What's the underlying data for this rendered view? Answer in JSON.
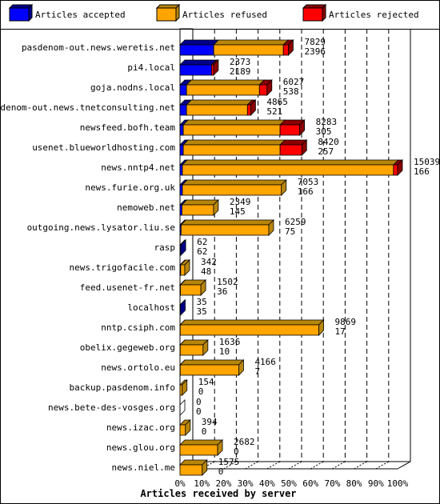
{
  "chart_data": {
    "type": "bar",
    "orientation": "horizontal",
    "stacked": true,
    "style": "3d",
    "xlabel": "Articles received by server",
    "ylabel": "",
    "xlim": [
      0,
      100
    ],
    "x_unit": "%",
    "grid": true,
    "legend_position": "top",
    "x_ticks": [
      "0%",
      "10%",
      "20%",
      "30%",
      "40%",
      "50%",
      "60%",
      "70%",
      "80%",
      "90%",
      "100%"
    ],
    "legend": [
      {
        "label": "Articles accepted",
        "color": "#0000ff"
      },
      {
        "label": "Articles refused",
        "color": "#ffa500"
      },
      {
        "label": "Articles rejected",
        "color": "#ff0000"
      }
    ],
    "series": [
      {
        "name": "Articles accepted",
        "color": "#0000ff",
        "top_color": "#00008b",
        "side_color": "#00008b"
      },
      {
        "name": "Articles refused",
        "color": "#ffa500",
        "top_color": "#b8860b",
        "side_color": "#b8860b"
      },
      {
        "name": "Articles rejected",
        "color": "#ff0000",
        "top_color": "#8b0000",
        "side_color": "#8b0000"
      }
    ],
    "rows": [
      {
        "server": "pasdenom-out.news.weretis.net",
        "label_top": "7829",
        "label_bottom": "2396",
        "accepted": 15.5,
        "refused": 32.0,
        "rejected": 2.3
      },
      {
        "server": "pi4.local",
        "label_top": "2373",
        "label_bottom": "2189",
        "accepted": 14.5,
        "refused": 0,
        "rejected": 0.9
      },
      {
        "server": "goja.nodns.local",
        "label_top": "6027",
        "label_bottom": "538",
        "accepted": 3.0,
        "refused": 33.5,
        "rejected": 3.5
      },
      {
        "server": "pasdenom-out.news.tnetconsulting.net",
        "label_top": "4865",
        "label_bottom": "521",
        "accepted": 3.0,
        "refused": 28.0,
        "rejected": 1.5
      },
      {
        "server": "newsfeed.bofh.team",
        "label_top": "8283",
        "label_bottom": "305",
        "accepted": 1.5,
        "refused": 44.5,
        "rejected": 9.0
      },
      {
        "server": "usenet.blueworldhosting.com",
        "label_top": "8420",
        "label_bottom": "257",
        "accepted": 1.5,
        "refused": 44.5,
        "rejected": 10.0
      },
      {
        "server": "news.nntp4.net",
        "label_top": "15039",
        "label_bottom": "166",
        "accepted": 1.1,
        "refused": 97.0,
        "rejected": 1.9
      },
      {
        "server": "news.furie.org.uk",
        "label_top": "7053",
        "label_bottom": "166",
        "accepted": 1.1,
        "refused": 45.5,
        "rejected": 0
      },
      {
        "server": "nemoweb.net",
        "label_top": "2349",
        "label_bottom": "145",
        "accepted": 0.9,
        "refused": 14.5,
        "rejected": 0
      },
      {
        "server": "outgoing.news.lysator.liu.se",
        "label_top": "6259",
        "label_bottom": "75",
        "accepted": 0.5,
        "refused": 40.3,
        "rejected": 0
      },
      {
        "server": "rasp",
        "label_top": "62",
        "label_bottom": "62",
        "accepted": 0.4,
        "refused": 0,
        "rejected": 0
      },
      {
        "server": "news.trigofacile.com",
        "label_top": "342",
        "label_bottom": "48",
        "accepted": 0.3,
        "refused": 1.9,
        "rejected": 0
      },
      {
        "server": "feed.usenet-fr.net",
        "label_top": "1502",
        "label_bottom": "36",
        "accepted": 0.2,
        "refused": 9.4,
        "rejected": 0
      },
      {
        "server": "localhost",
        "label_top": "35",
        "label_bottom": "35",
        "accepted": 0.2,
        "refused": 0,
        "rejected": 0
      },
      {
        "server": "nntp.csiph.com",
        "label_top": "9869",
        "label_bottom": "17",
        "accepted": 0.1,
        "refused": 63.7,
        "rejected": 0
      },
      {
        "server": "obelix.gegeweb.org",
        "label_top": "1636",
        "label_bottom": "10",
        "accepted": 0.1,
        "refused": 10.5,
        "rejected": 0
      },
      {
        "server": "news.ortolo.eu",
        "label_top": "4166",
        "label_bottom": "7",
        "accepted": 0.1,
        "refused": 26.9,
        "rejected": 0
      },
      {
        "server": "backup.pasdenom.info",
        "label_top": "154",
        "label_bottom": "0",
        "accepted": 0,
        "refused": 1.0,
        "rejected": 0
      },
      {
        "server": "news.bete-des-vosges.org",
        "label_top": "0",
        "label_bottom": "0",
        "accepted": 0,
        "refused": 0,
        "rejected": 0
      },
      {
        "server": "news.izac.org",
        "label_top": "394",
        "label_bottom": "0",
        "accepted": 0,
        "refused": 2.5,
        "rejected": 0
      },
      {
        "server": "news.glou.org",
        "label_top": "2682",
        "label_bottom": "0",
        "accepted": 0,
        "refused": 17.3,
        "rejected": 0
      },
      {
        "server": "news.niel.me",
        "label_top": "1575",
        "label_bottom": "0",
        "accepted": 0,
        "refused": 10.2,
        "rejected": 0
      }
    ]
  }
}
